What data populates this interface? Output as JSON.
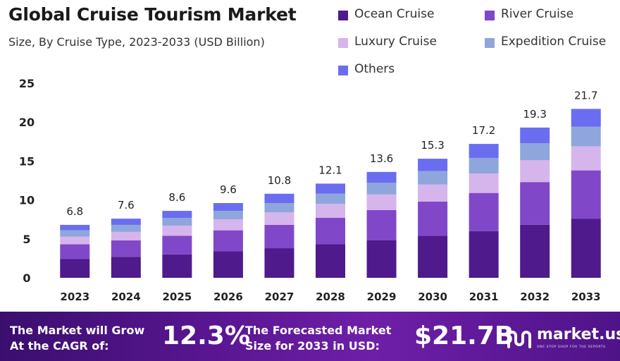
{
  "colors": {
    "ocean": "#4e1a8c",
    "river": "#8048c8",
    "luxury": "#d6b4ec",
    "expedition": "#8fa6dc",
    "others": "#6b6df0",
    "axis_text": "#222222",
    "grid": "#e5e5e5"
  },
  "chart_data": {
    "type": "bar",
    "stacked": true,
    "title": "Global Cruise Tourism Market",
    "subtitle": "Size, By Cruise Type, 2023-2033  (USD Billion)",
    "categories": [
      "2023",
      "2024",
      "2025",
      "2026",
      "2027",
      "2028",
      "2029",
      "2030",
      "2031",
      "2032",
      "2033"
    ],
    "totals": [
      6.8,
      7.6,
      8.6,
      9.6,
      10.8,
      12.1,
      13.6,
      15.3,
      17.2,
      19.3,
      21.7
    ],
    "total_labels": [
      "6.8",
      "7.6",
      "8.6",
      "9.6",
      "10.8",
      "12.1",
      "13.6",
      "15.3",
      "17.2",
      "19.3",
      "21.7"
    ],
    "series": [
      {
        "name": "Ocean Cruise",
        "key": "ocean",
        "values": [
          2.4,
          2.7,
          3.0,
          3.4,
          3.8,
          4.3,
          4.8,
          5.4,
          6.0,
          6.8,
          7.6
        ]
      },
      {
        "name": "River Cruise",
        "key": "river",
        "values": [
          1.9,
          2.1,
          2.4,
          2.7,
          3.0,
          3.4,
          3.9,
          4.4,
          4.9,
          5.5,
          6.2
        ]
      },
      {
        "name": "Luxury Cruise",
        "key": "luxury",
        "values": [
          1.0,
          1.1,
          1.3,
          1.4,
          1.6,
          1.8,
          2.0,
          2.2,
          2.5,
          2.8,
          3.1
        ]
      },
      {
        "name": "Expedition Cruise",
        "key": "expedition",
        "values": [
          0.8,
          0.9,
          1.0,
          1.1,
          1.2,
          1.3,
          1.5,
          1.7,
          2.0,
          2.2,
          2.5
        ]
      },
      {
        "name": "Others",
        "key": "others",
        "values": [
          0.7,
          0.8,
          0.9,
          1.0,
          1.2,
          1.3,
          1.4,
          1.6,
          1.8,
          2.0,
          2.3
        ]
      }
    ],
    "y_ticks": [
      "0",
      "5",
      "10",
      "15",
      "20",
      "25"
    ],
    "ylim": [
      0,
      25
    ],
    "grid": false,
    "legend": "top-right"
  },
  "banner": {
    "cagr_text": "The Market will Grow At the CAGR of:",
    "cagr_value": "12.3%",
    "forecast_text": "The Forecasted Market Size for 2033 in USD:",
    "forecast_value": "$21.7B",
    "brand": "market.us",
    "brand_tagline": "ONE STOP SHOP FOR THE REPORTS"
  }
}
